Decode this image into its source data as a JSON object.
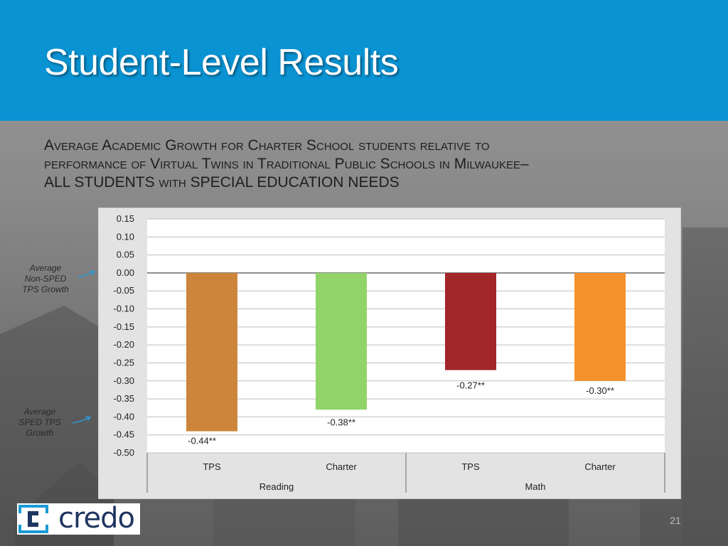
{
  "slide": {
    "title": "Student-Level Results",
    "subtitle_lines": [
      "Average Academic Growth for Charter School students relative to",
      "performance of Virtual Twins in Traditional Public Schools in Milwaukee–",
      "ALL STUDENTS with SPECIAL EDUCATION NEEDS"
    ],
    "page_number": "21",
    "logo_text": "credo",
    "colors": {
      "header": "#0a93d3",
      "logo": "#1f3561"
    }
  },
  "annotations": {
    "non_sped": [
      "Average",
      "Non-SPED",
      "TPS Growth"
    ],
    "sped": [
      "Average",
      "SPED TPS",
      "Growth"
    ]
  },
  "chart_data": {
    "type": "bar",
    "ylim": [
      -0.5,
      0.15
    ],
    "yticks": [
      "0.15",
      "0.10",
      "0.05",
      "0.00",
      "-0.05",
      "-0.10",
      "-0.15",
      "-0.20",
      "-0.25",
      "-0.30",
      "-0.35",
      "-0.40",
      "-0.45",
      "-0.50"
    ],
    "grid": true,
    "groups": [
      "Reading",
      "Math"
    ],
    "categories": [
      "TPS",
      "Charter",
      "TPS",
      "Charter"
    ],
    "values": [
      -0.44,
      -0.38,
      -0.27,
      -0.3
    ],
    "data_labels": [
      "-0.44**",
      "-0.38**",
      "-0.27**",
      "-0.30**"
    ],
    "colors": [
      "#cd853b",
      "#92d36a",
      "#a3262a",
      "#f5912b"
    ]
  }
}
